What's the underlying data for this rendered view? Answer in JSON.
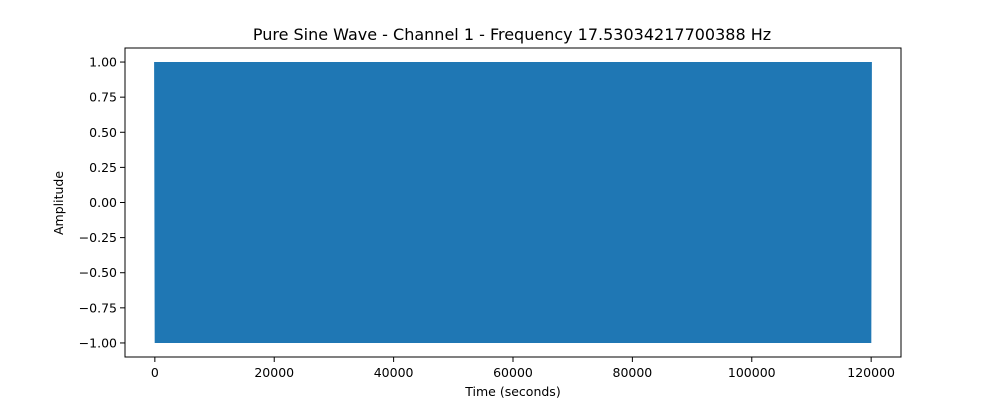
{
  "chart_data": {
    "type": "line",
    "title": "Pure Sine Wave - Channel 1 - Frequency 17.53034217700388 Hz",
    "xlabel": "Time (seconds)",
    "ylabel": "Amplitude",
    "xlim": [
      -5000,
      125000
    ],
    "ylim": [
      -1.1,
      1.1
    ],
    "xticks": [
      0,
      20000,
      40000,
      60000,
      80000,
      100000,
      120000
    ],
    "xtick_labels": [
      "0",
      "20000",
      "40000",
      "60000",
      "80000",
      "100000",
      "120000"
    ],
    "yticks": [
      -1.0,
      -0.75,
      -0.5,
      -0.25,
      0.0,
      0.25,
      0.5,
      0.75,
      1.0
    ],
    "ytick_labels": [
      "−1.00",
      "−0.75",
      "−0.50",
      "−0.25",
      "0.00",
      "0.25",
      "0.50",
      "0.75",
      "1.00"
    ],
    "grid": false,
    "series": [
      {
        "color": "#1f77b4",
        "frequency_hz": 17.53034217700388,
        "amplitude": 1.0,
        "x_range": [
          0,
          120000
        ]
      }
    ]
  }
}
